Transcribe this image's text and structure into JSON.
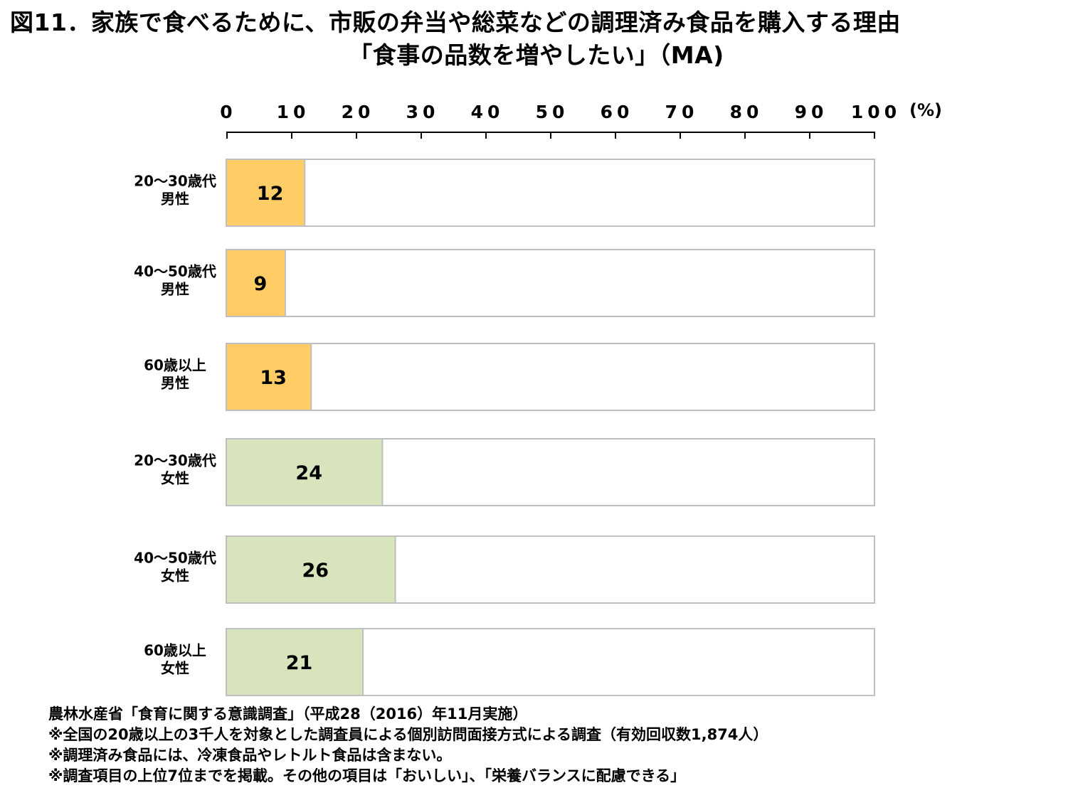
{
  "title": {
    "line1": "図11．家族で食べるために、市販の弁当や総菜などの調理済み食品を購入する理由",
    "line2": "「食事の品数を増やしたい」（MA)"
  },
  "chart_data": {
    "type": "bar",
    "orientation": "horizontal",
    "xlim": [
      0,
      100
    ],
    "ticks": [
      "0",
      "10",
      "20",
      "30",
      "40",
      "50",
      "60",
      "70",
      "80",
      "90",
      "100"
    ],
    "unit": "(%)",
    "categories": [
      [
        "20～30歳代",
        "男性"
      ],
      [
        "40～50歳代",
        "男性"
      ],
      [
        "60歳以上",
        "男性"
      ],
      [
        "20～30歳代",
        "女性"
      ],
      [
        "40～50歳代",
        "女性"
      ],
      [
        "60歳以上",
        "女性"
      ]
    ],
    "values": [
      12,
      9,
      13,
      24,
      26,
      21
    ],
    "colors": {
      "male": "#ffcc66",
      "female": "#d8e4bc",
      "track_border": "#bfbfbf",
      "track_fill": "#ffffff"
    },
    "bar_colors": [
      "male",
      "male",
      "male",
      "female",
      "female",
      "female"
    ]
  },
  "notes": [
    "農林水産省「食育に関する意識調査」（平成28（2016）年11月実施）",
    "※全国の20歳以上の3千人を対象とした調査員による個別訪問面接方式による調査（有効回収数1,874人）",
    "※調理済み食品には、冷凍食品やレトルト食品は含まない。",
    "※調査項目の上位7位までを掲載。その他の項目は「おいしい」、「栄養バランスに配慮できる」"
  ]
}
